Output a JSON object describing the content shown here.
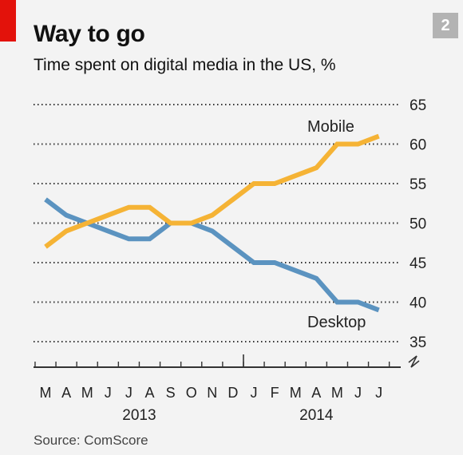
{
  "header": {
    "title": "Way to go",
    "subtitle": "Time spent on digital media in the US, %",
    "badge": "2"
  },
  "footer": {
    "source": "Source: ComScore"
  },
  "chart_data": {
    "type": "line",
    "title": "Way to go",
    "subtitle": "Time spent on digital media in the US, %",
    "categories": [
      "M",
      "A",
      "M",
      "J",
      "J",
      "A",
      "S",
      "O",
      "N",
      "D",
      "J",
      "F",
      "M",
      "A",
      "M",
      "J",
      "J"
    ],
    "year_labels": [
      {
        "label": "2013",
        "start": 0,
        "end": 9
      },
      {
        "label": "2014",
        "start": 10,
        "end": 16
      }
    ],
    "ylim": [
      35,
      65
    ],
    "yticks": [
      35,
      40,
      45,
      50,
      55,
      60,
      65
    ],
    "grid": true,
    "axis_break": true,
    "series": [
      {
        "name": "Mobile",
        "color": "#f5b335",
        "values": [
          47,
          49,
          50,
          51,
          52,
          52,
          50,
          50,
          51,
          53,
          55,
          55,
          56,
          57,
          60,
          60,
          61
        ]
      },
      {
        "name": "Desktop",
        "color": "#5b93c0",
        "values": [
          53,
          51,
          50,
          49,
          48,
          48,
          50,
          50,
          49,
          47,
          45,
          45,
          44,
          43,
          40,
          40,
          39
        ]
      }
    ]
  }
}
